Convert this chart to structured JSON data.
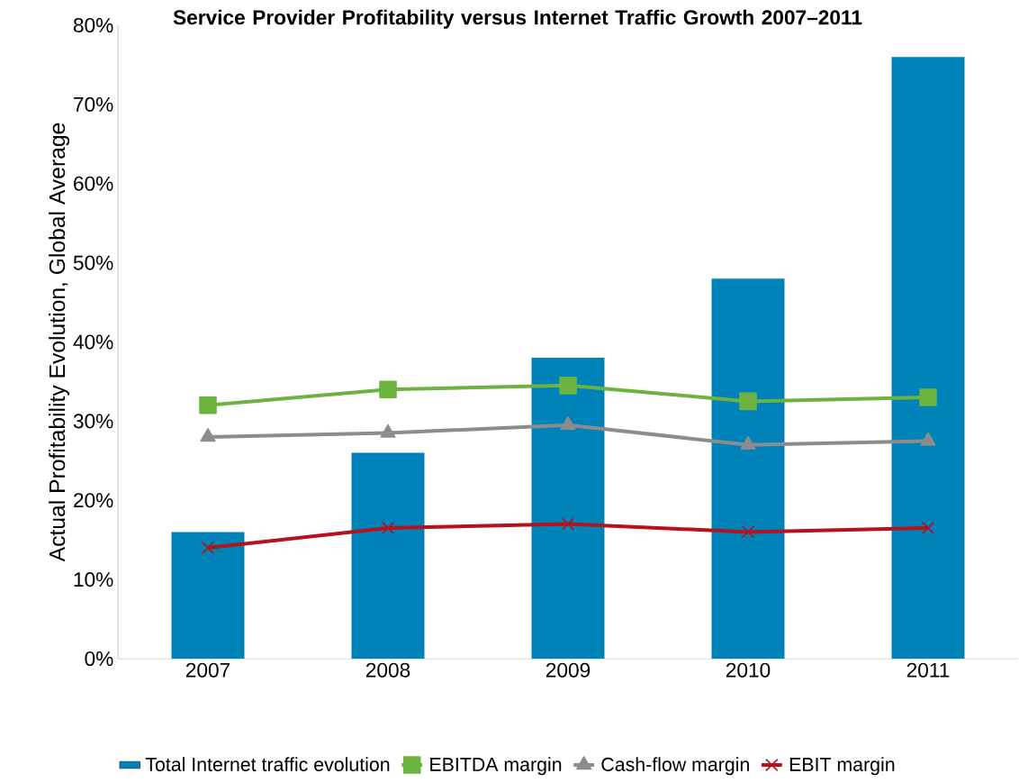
{
  "chart_data": {
    "type": "bar",
    "title": "Service Provider Profitability versus Internet Traffic Growth 2007–2011",
    "ylabel": "Actual Profitability Evolution, Global Average",
    "categories": [
      "2007",
      "2008",
      "2009",
      "2010",
      "2011"
    ],
    "series": [
      {
        "name": "Total Internet traffic evolution",
        "color": "#0083b8",
        "values": [
          16,
          26,
          38,
          48,
          76
        ]
      },
      {
        "name": "EBITDA margin",
        "type": "line",
        "marker": "square",
        "color": "#6db33f",
        "values": [
          32,
          34,
          34.5,
          32.5,
          33
        ]
      },
      {
        "name": "Cash-flow margin",
        "type": "line",
        "marker": "triangle",
        "color": "#8c8c8f",
        "values": [
          28,
          28.5,
          29.5,
          27,
          27.5
        ]
      },
      {
        "name": "EBIT margin",
        "type": "line",
        "marker": "cross",
        "color": "#b5121b",
        "values": [
          14,
          16.5,
          17,
          16,
          16.5
        ]
      }
    ],
    "ylim": [
      0,
      80
    ],
    "yticks": [
      {
        "value": 0,
        "label": "0%"
      },
      {
        "value": 10,
        "label": "10%"
      },
      {
        "value": 20,
        "label": "20%"
      },
      {
        "value": 30,
        "label": "30%"
      },
      {
        "value": 40,
        "label": "40%"
      },
      {
        "value": 50,
        "label": "50%"
      },
      {
        "value": 60,
        "label": "60%"
      },
      {
        "value": 70,
        "label": "70%"
      },
      {
        "value": 80,
        "label": "80%"
      }
    ],
    "grid": false,
    "legend": "bottom"
  }
}
